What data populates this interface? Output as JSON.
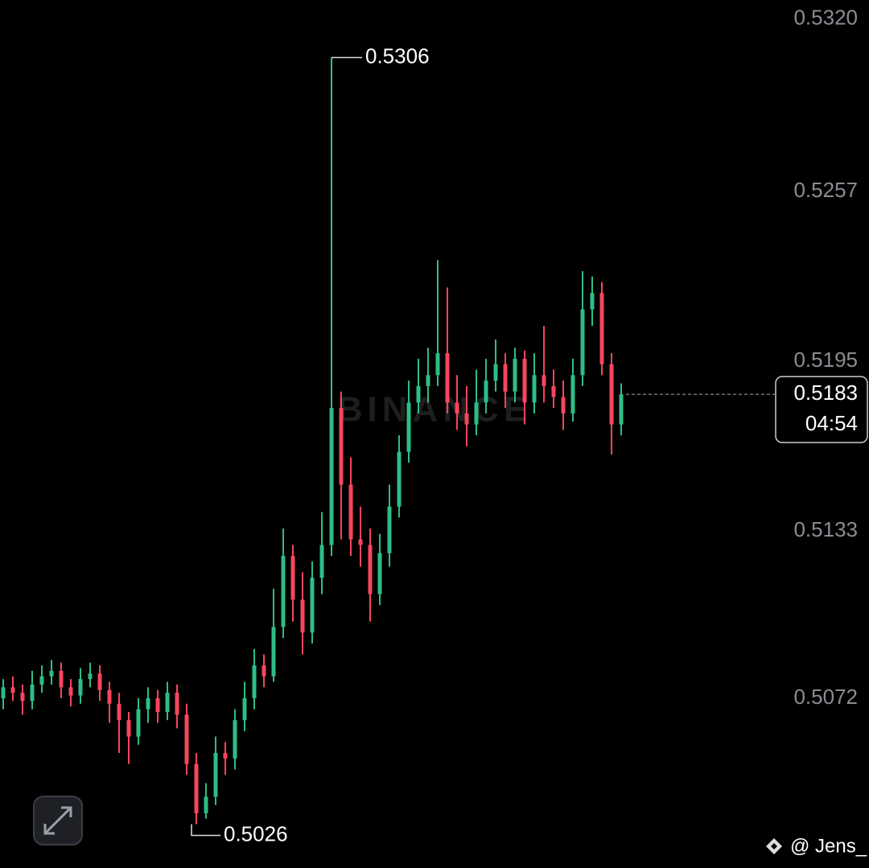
{
  "chart_data": {
    "type": "candlestick",
    "watermark": "BINANCE",
    "author": "@ Jens_",
    "countdown": "04:54",
    "up_color": "#2ebd85",
    "down_color": "#f6465d",
    "ylim": [
      0.501,
      0.5327
    ],
    "yticks": [
      {
        "value": 0.532,
        "label": "0.5320"
      },
      0.5257,
      0.5195,
      0.5133,
      0.5072
    ],
    "open": [
      0.5072,
      0.5076,
      0.5074,
      0.5071,
      0.5077,
      0.508,
      0.5082,
      0.5076,
      0.5073,
      0.5079,
      0.5081,
      0.5075,
      0.507,
      0.5064,
      0.5058,
      0.5068,
      0.5072,
      0.5067,
      0.5074,
      0.5066,
      0.5048,
      0.503,
      0.5036,
      0.5052,
      0.505,
      0.5064,
      0.5072,
      0.5084,
      0.508,
      0.5098,
      0.5124,
      0.5108,
      0.5096,
      0.5116,
      0.5128,
      0.5178,
      0.515,
      0.513,
      0.5128,
      0.511,
      0.5125,
      0.5142,
      0.5162,
      0.518,
      0.5186,
      0.519,
      0.5198,
      0.518,
      0.5176,
      0.5172,
      0.518,
      0.5188,
      0.5194,
      0.5184,
      0.5196,
      0.518,
      0.519,
      0.5186,
      0.5182,
      0.5176,
      0.519,
      0.5214,
      0.522,
      0.5194,
      0.5172
    ],
    "high": [
      0.5079,
      0.508,
      0.5077,
      0.5082,
      0.5084,
      0.5086,
      0.5085,
      0.5079,
      0.5083,
      0.5085,
      0.5084,
      0.5078,
      0.5074,
      0.5067,
      0.5072,
      0.5076,
      0.5075,
      0.5078,
      0.5077,
      0.507,
      0.5052,
      0.5041,
      0.5058,
      0.5056,
      0.5068,
      0.5078,
      0.509,
      0.5088,
      0.5112,
      0.5134,
      0.5128,
      0.5118,
      0.5122,
      0.514,
      0.5306,
      0.5184,
      0.516,
      0.5142,
      0.5134,
      0.5132,
      0.515,
      0.5168,
      0.5188,
      0.5196,
      0.52,
      0.5232,
      0.5222,
      0.519,
      0.5186,
      0.5192,
      0.5196,
      0.5203,
      0.5198,
      0.52,
      0.5199,
      0.5198,
      0.5208,
      0.5192,
      0.5188,
      0.5196,
      0.5228,
      0.5226,
      0.5224,
      0.5198,
      0.5187
    ],
    "low": [
      0.5068,
      0.5071,
      0.5066,
      0.5068,
      0.5074,
      0.5077,
      0.5072,
      0.5069,
      0.507,
      0.5076,
      0.5071,
      0.5063,
      0.5052,
      0.5048,
      0.5055,
      0.5063,
      0.5063,
      0.5064,
      0.5061,
      0.5044,
      0.5026,
      0.5028,
      0.5033,
      0.5044,
      0.5046,
      0.506,
      0.5068,
      0.5076,
      0.5078,
      0.5094,
      0.51,
      0.5088,
      0.5092,
      0.511,
      0.5124,
      0.513,
      0.5124,
      0.512,
      0.51,
      0.5106,
      0.512,
      0.5138,
      0.5158,
      0.5176,
      0.518,
      0.5186,
      0.5176,
      0.517,
      0.5164,
      0.5168,
      0.5176,
      0.5184,
      0.5178,
      0.518,
      0.5172,
      0.5176,
      0.518,
      0.5178,
      0.517,
      0.5173,
      0.5186,
      0.5208,
      0.519,
      0.5161,
      0.5168
    ],
    "close": [
      0.5076,
      0.5074,
      0.5071,
      0.5077,
      0.508,
      0.5082,
      0.5076,
      0.5073,
      0.5079,
      0.5081,
      0.5075,
      0.507,
      0.5064,
      0.5058,
      0.5068,
      0.5072,
      0.5067,
      0.5074,
      0.5066,
      0.5048,
      0.503,
      0.5036,
      0.5052,
      0.505,
      0.5064,
      0.5072,
      0.5084,
      0.508,
      0.5098,
      0.5124,
      0.5108,
      0.5096,
      0.5116,
      0.5128,
      0.5178,
      0.515,
      0.513,
      0.5128,
      0.511,
      0.5125,
      0.5142,
      0.5162,
      0.518,
      0.5186,
      0.519,
      0.5198,
      0.518,
      0.5176,
      0.5172,
      0.518,
      0.5188,
      0.5194,
      0.5184,
      0.5196,
      0.518,
      0.519,
      0.5186,
      0.5182,
      0.5176,
      0.519,
      0.5214,
      0.522,
      0.5194,
      0.5172,
      0.5183
    ]
  }
}
